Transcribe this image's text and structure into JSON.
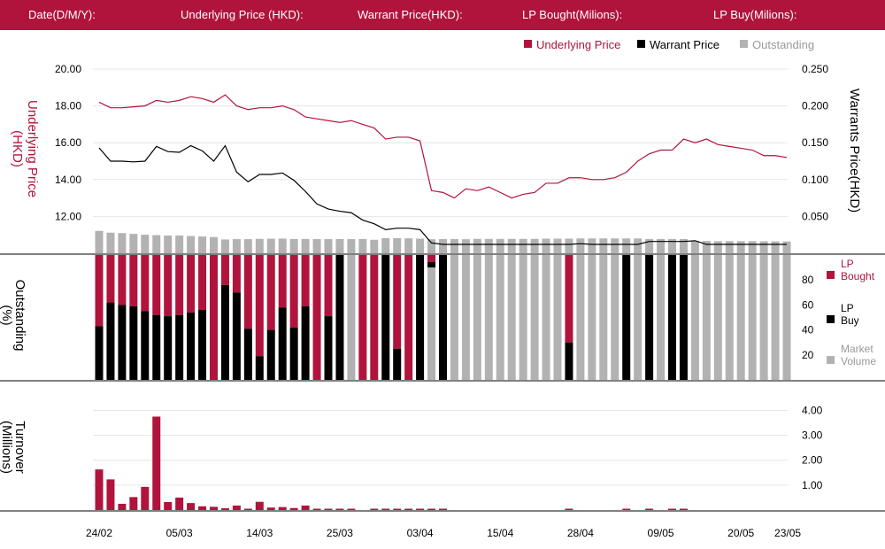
{
  "header": {
    "date_label": "Date(D/M/Y):",
    "underlying_label": "Underlying Price (HKD):",
    "warrant_label": "Warrant  Price(HKD):",
    "lp_bought_label": "LP Bought(Milions):",
    "lp_buy_label": "LP Buy(Milions):"
  },
  "colors": {
    "header_bg": "#b0143c",
    "underlying": "#b0143c",
    "warrant": "#000000",
    "outstanding": "#b2b2b2",
    "lp_bought": "#b0143c",
    "lp_buy": "#000000",
    "turnover": "#b0143c"
  },
  "chart_data": {
    "type": "composite",
    "x_tick_labels": [
      "24/02",
      "05/03",
      "14/03",
      "25/03",
      "03/04",
      "15/04",
      "28/04",
      "09/05",
      "20/05",
      "23/05"
    ],
    "x_tick_index": [
      0,
      7,
      14,
      21,
      28,
      35,
      42,
      49,
      56,
      59
    ],
    "price_panel": {
      "legend": [
        "Underlying Price",
        "Warrant  Price",
        "Outstanding"
      ],
      "y_left_label": "Underlying Price (HKD)",
      "y_left_ticks": [
        "20.00",
        "18.00",
        "16.00",
        "14.00",
        "12.00"
      ],
      "y_left_range": [
        10,
        20
      ],
      "y_right_label": "Warrants  Price(HKD)",
      "y_right_ticks": [
        "0.250",
        "0.200",
        "0.150",
        "0.100",
        "0.050"
      ],
      "y_right_range": [
        0,
        0.25
      ],
      "underlying": [
        18.2,
        17.9,
        17.9,
        17.95,
        18.0,
        18.3,
        18.2,
        18.3,
        18.5,
        18.4,
        18.2,
        18.6,
        18.0,
        17.8,
        17.9,
        17.9,
        18.0,
        17.8,
        17.4,
        17.3,
        17.2,
        17.1,
        17.2,
        17.0,
        16.8,
        16.2,
        16.3,
        16.3,
        16.1,
        13.4,
        13.3,
        13.0,
        13.5,
        13.4,
        13.6,
        13.3,
        13.0,
        13.2,
        13.3,
        13.8,
        13.8,
        14.1,
        14.1,
        14.0,
        14.0,
        14.1,
        14.4,
        15.0,
        15.4,
        15.6,
        15.6,
        16.2,
        16.0,
        16.2,
        15.9,
        15.8,
        15.7,
        15.6,
        15.3,
        15.3,
        15.2
      ],
      "warrant": [
        0.143,
        0.125,
        0.125,
        0.124,
        0.125,
        0.145,
        0.138,
        0.137,
        0.146,
        0.139,
        0.125,
        0.146,
        0.11,
        0.097,
        0.107,
        0.107,
        0.109,
        0.099,
        0.084,
        0.067,
        0.06,
        0.057,
        0.055,
        0.045,
        0.04,
        0.032,
        0.034,
        0.034,
        0.032,
        0.014,
        0.012,
        0.012,
        0.012,
        0.012,
        0.012,
        0.012,
        0.012,
        0.012,
        0.012,
        0.012,
        0.012,
        0.012,
        0.013,
        0.012,
        0.012,
        0.012,
        0.012,
        0.012,
        0.016,
        0.016,
        0.016,
        0.016,
        0.017,
        0.012,
        0.012,
        0.012,
        0.012,
        0.012,
        0.012,
        0.012,
        0.012
      ],
      "outstanding": [
        12.15,
        11.18,
        10.94,
        10.52,
        10.06,
        9.82,
        9.64,
        9.64,
        9.34,
        9.1,
        8.8,
        7.48,
        7.66,
        7.66,
        7.84,
        7.9,
        7.96,
        7.72,
        7.78,
        7.68,
        7.68,
        7.74,
        7.68,
        7.74,
        7.32,
        8.22,
        8.22,
        8.1,
        7.92,
        7.62,
        7.68,
        7.68,
        7.62,
        7.8,
        7.8,
        7.8,
        7.8,
        7.8,
        7.8,
        7.92,
        7.92,
        7.92,
        8.04,
        8.04,
        8.04,
        8.04,
        8.04,
        8.04,
        7.74,
        7.74,
        7.74,
        7.74,
        6.72,
        6.66,
        6.54,
        6.54,
        6.54,
        6.54,
        6.48,
        6.42,
        6.42
      ],
      "outstanding_ymax": 100
    },
    "lp_panel": {
      "y_label": "Outstanding (%)",
      "y_ticks": [
        "80",
        "60",
        "40",
        "20"
      ],
      "y_range": [
        0,
        100
      ],
      "legend": [
        "LP Bought",
        "LP Buy",
        "Market Volume"
      ],
      "bars_from_top": [
        [
          0,
          57
        ],
        [
          0,
          38
        ],
        [
          0,
          40
        ],
        [
          0,
          41
        ],
        [
          0,
          45
        ],
        [
          0,
          48
        ],
        [
          0,
          49
        ],
        [
          0,
          48
        ],
        [
          0,
          46
        ],
        [
          0,
          44
        ],
        [
          100,
          0
        ],
        [
          0,
          24
        ],
        [
          0,
          30
        ],
        [
          0,
          59
        ],
        [
          0,
          81
        ],
        [
          0,
          60
        ],
        [
          0,
          42
        ],
        [
          0,
          58
        ],
        [
          0,
          41
        ],
        [
          0,
          0
        ],
        [
          0,
          49
        ],
        [
          100,
          0
        ],
        [
          0,
          0
        ],
        [
          0,
          0
        ],
        [
          0,
          0
        ],
        [
          0,
          0
        ],
        [
          0,
          75
        ],
        [
          0,
          0
        ],
        [
          0,
          0
        ],
        [
          5,
          0
        ],
        [
          0,
          100
        ],
        [
          0,
          0
        ],
        [
          0,
          0
        ],
        [
          0,
          0
        ],
        [
          0,
          0
        ],
        [
          0,
          0
        ],
        [
          0,
          0
        ],
        [
          0,
          0
        ],
        [
          0,
          0
        ],
        [
          0,
          0
        ],
        [
          0,
          0
        ],
        [
          0,
          70
        ],
        [
          0,
          0
        ],
        [
          0,
          0
        ],
        [
          0,
          0
        ],
        [
          0,
          0
        ],
        [
          0,
          100
        ],
        [
          0,
          0
        ],
        [
          0,
          100
        ],
        [
          0,
          0
        ],
        [
          0,
          100
        ],
        [
          0,
          0
        ],
        [
          0,
          0
        ],
        [
          0,
          0
        ],
        [
          0,
          0
        ],
        [
          0,
          0
        ],
        [
          0,
          0
        ],
        [
          0,
          0
        ],
        [
          0,
          0
        ],
        [
          0,
          0
        ],
        [
          0,
          0
        ]
      ],
      "bar_kind": [
        "red",
        "red",
        "red",
        "red",
        "red",
        "red",
        "red",
        "red",
        "red",
        "red",
        "gray-red",
        "red",
        "red",
        "red",
        "red",
        "red",
        "red",
        "red",
        "red",
        "red",
        "red",
        "black",
        "gray",
        "red",
        "red",
        "black",
        "red",
        "red",
        "black",
        "mixed",
        "black",
        "gray",
        "gray",
        "gray",
        "gray",
        "gray",
        "gray",
        "gray",
        "gray",
        "gray",
        "gray",
        "red",
        "gray",
        "gray",
        "gray",
        "gray",
        "black",
        "gray",
        "black",
        "gray",
        "black",
        "black",
        "gray",
        "gray",
        "gray",
        "gray",
        "gray",
        "gray",
        "gray",
        "gray",
        "gray"
      ]
    },
    "turnover_panel": {
      "y_label": "Turnover (Millions)",
      "y_ticks": [
        "4.00",
        "3.00",
        "2.00",
        "1.00"
      ],
      "y_range": [
        0,
        4.3
      ],
      "values": [
        1.63,
        1.23,
        0.25,
        0.52,
        0.93,
        3.75,
        0.32,
        0.5,
        0.28,
        0.15,
        0.13,
        0.07,
        0.18,
        0.05,
        0.33,
        0.1,
        0.12,
        0.08,
        0.18,
        0.05,
        0.05,
        0.04,
        0.03,
        0,
        0.03,
        0.03,
        0.03,
        0.03,
        0.02,
        0.02,
        0.02,
        0,
        0,
        0,
        0,
        0,
        0,
        0,
        0,
        0,
        0,
        0.03,
        0,
        0,
        0,
        0,
        0.03,
        0,
        0.03,
        0,
        0.03,
        0.03,
        0,
        0,
        0,
        0,
        0,
        0,
        0,
        0,
        0
      ]
    }
  }
}
